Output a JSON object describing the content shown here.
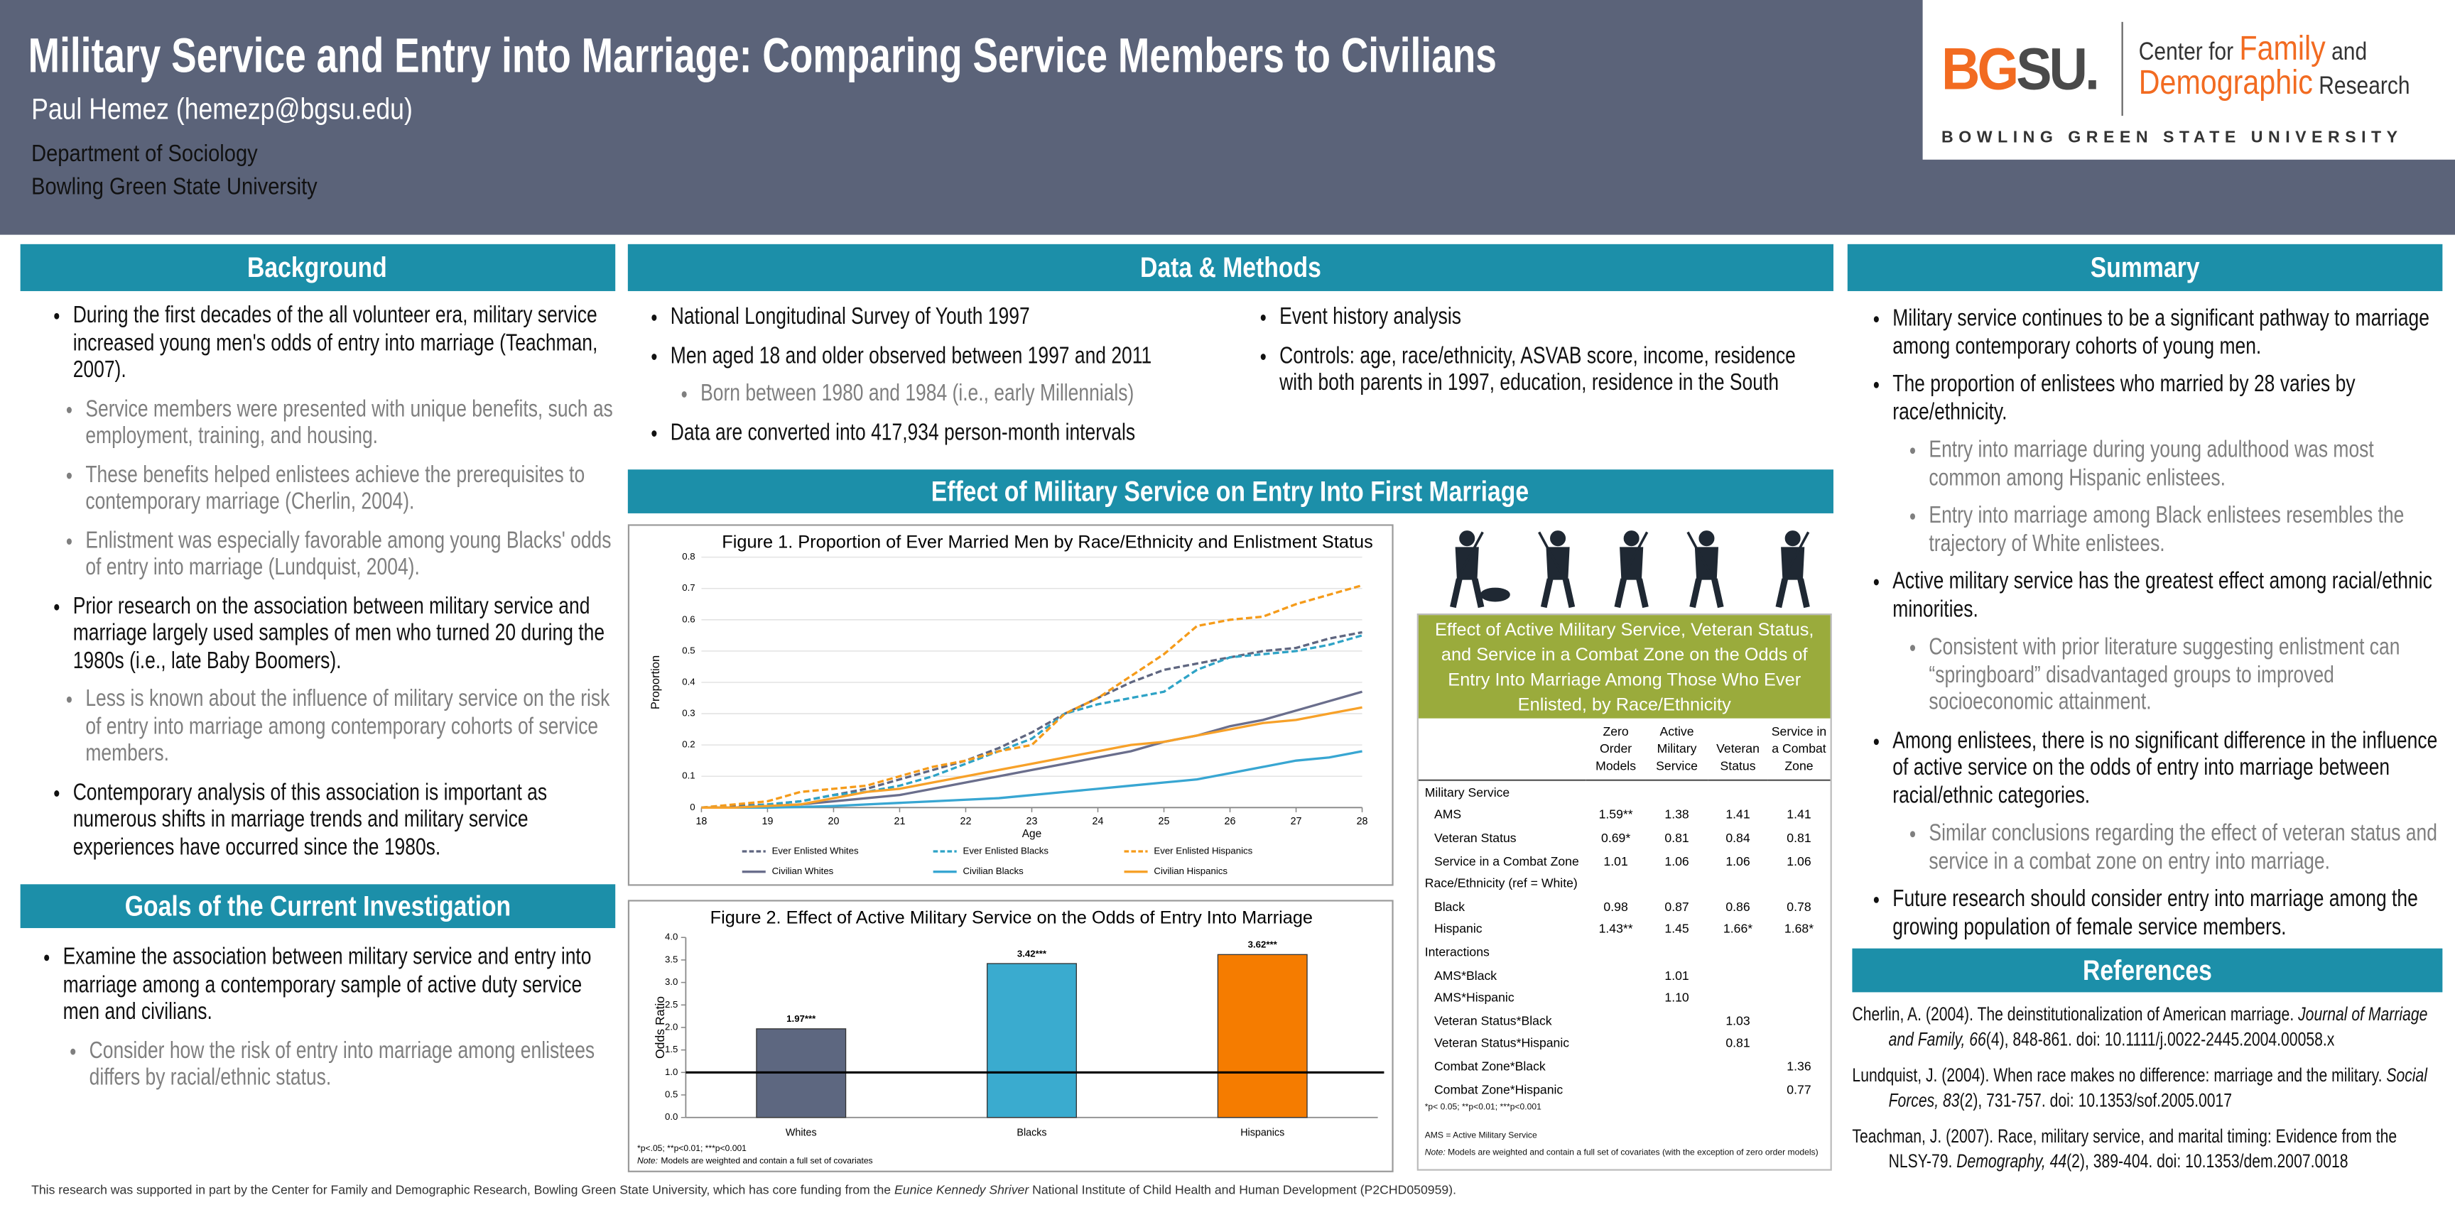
{
  "header": {
    "title": "Military Service and Entry into Marriage: Comparing Service Members to Civilians",
    "author": "Paul Hemez (hemezp@bgsu.edu)",
    "department": "Department of Sociology",
    "university": "Bowling Green State University"
  },
  "logo": {
    "bg": "BG",
    "su": "SU.",
    "center_for": "Center for",
    "family": "Family",
    "and": "and",
    "demographic": "Demographic",
    "research": "Research",
    "university": "BOWLING GREEN STATE UNIVERSITY"
  },
  "background": {
    "heading": "Background",
    "items": [
      {
        "level": 1,
        "text": "During the first decades of the all volunteer era, military service increased young men's odds of entry into marriage (Teachman, 2007)."
      },
      {
        "level": 2,
        "text": "Service members were presented with unique benefits, such as employment, training, and housing."
      },
      {
        "level": 2,
        "text": "These benefits helped enlistees achieve the prerequisites to contemporary marriage (Cherlin, 2004)."
      },
      {
        "level": 2,
        "text": "Enlistment was especially favorable among young Blacks' odds of entry into marriage (Lundquist, 2004)."
      },
      {
        "level": 1,
        "text": "Prior research on the association between military service and marriage largely used samples of men who turned 20 during the 1980s (i.e., late Baby Boomers)."
      },
      {
        "level": 2,
        "text": "Less is known about the influence of military service on the risk of entry into marriage among contemporary cohorts of service members."
      },
      {
        "level": 1,
        "text": "Contemporary analysis of this association is important as numerous shifts in marriage trends and military service experiences have occurred since the 1980s."
      }
    ]
  },
  "goals": {
    "heading": "Goals of the Current Investigation",
    "items": [
      {
        "level": 1,
        "text": "Examine the association between military service and entry into marriage among a contemporary sample of active duty service men and civilians."
      },
      {
        "level": 2,
        "text": "Consider how the risk of entry into marriage among enlistees differs by racial/ethnic status."
      }
    ]
  },
  "methods": {
    "heading": "Data & Methods",
    "left": [
      {
        "level": 1,
        "text": "National Longitudinal Survey of Youth 1997"
      },
      {
        "level": 1,
        "text": "Men aged 18 and older observed between 1997 and 2011"
      },
      {
        "level": 2,
        "text": "Born between 1980 and 1984 (i.e., early Millennials)"
      },
      {
        "level": 1,
        "text": "Data are converted into 417,934 person-month intervals"
      }
    ],
    "right": [
      {
        "level": 1,
        "text": "Event history analysis"
      },
      {
        "level": 1,
        "text": "Controls: age, race/ethnicity, ASVAB score, income, residence with both parents in 1997, education, residence in the South"
      }
    ]
  },
  "effect_heading": "Effect of Military Service on Entry Into First Marriage",
  "chart_data": [
    {
      "type": "line",
      "title": "Figure 1. Proportion of Ever Married Men by Race/Ethnicity and Enlistment Status",
      "x_label": "Age",
      "y_label": "Proportion",
      "x": [
        18,
        18.5,
        19,
        19.5,
        20,
        20.5,
        21,
        21.5,
        22,
        22.5,
        23,
        23.5,
        24,
        24.5,
        25,
        25.5,
        26,
        26.5,
        27,
        27.5,
        28
      ],
      "xlim": [
        18,
        28
      ],
      "xticks": [
        18,
        19,
        20,
        21,
        22,
        23,
        24,
        25,
        26,
        27,
        28
      ],
      "ylim": [
        0,
        0.8
      ],
      "yticks": [
        0,
        0.1,
        0.2,
        0.3,
        0.4,
        0.5,
        0.6,
        0.7,
        0.8
      ],
      "grid": true,
      "legend": "bottom",
      "series": [
        {
          "name": "Ever Enlisted Whites",
          "color": "#5f6680",
          "dash": true,
          "values": [
            0,
            0.005,
            0.01,
            0.02,
            0.04,
            0.06,
            0.09,
            0.12,
            0.15,
            0.19,
            0.24,
            0.3,
            0.35,
            0.4,
            0.44,
            0.46,
            0.48,
            0.5,
            0.51,
            0.54,
            0.56
          ]
        },
        {
          "name": "Ever Enlisted Blacks",
          "color": "#2ea3c6",
          "dash": true,
          "values": [
            0,
            0,
            0.01,
            0.02,
            0.04,
            0.05,
            0.07,
            0.1,
            0.14,
            0.18,
            0.22,
            0.3,
            0.33,
            0.35,
            0.37,
            0.44,
            0.48,
            0.49,
            0.5,
            0.52,
            0.55
          ]
        },
        {
          "name": "Ever Enlisted Hispanics",
          "color": "#f59b1a",
          "dash": true,
          "values": [
            0,
            0.01,
            0.02,
            0.05,
            0.06,
            0.07,
            0.1,
            0.13,
            0.15,
            0.18,
            0.2,
            0.3,
            0.35,
            0.42,
            0.49,
            0.58,
            0.6,
            0.61,
            0.65,
            0.68,
            0.71
          ]
        },
        {
          "name": "Civilian Whites",
          "color": "#6a6e8c",
          "dash": false,
          "values": [
            0,
            0,
            0.005,
            0.01,
            0.02,
            0.03,
            0.04,
            0.06,
            0.08,
            0.1,
            0.12,
            0.14,
            0.16,
            0.18,
            0.21,
            0.23,
            0.26,
            0.28,
            0.31,
            0.34,
            0.37
          ]
        },
        {
          "name": "Civilian Blacks",
          "color": "#38a6d2",
          "dash": false,
          "values": [
            0,
            0,
            0,
            0.002,
            0.005,
            0.01,
            0.015,
            0.02,
            0.025,
            0.03,
            0.04,
            0.05,
            0.06,
            0.07,
            0.08,
            0.09,
            0.11,
            0.13,
            0.15,
            0.16,
            0.18
          ]
        },
        {
          "name": "Civilian Hispanics",
          "color": "#f7a129",
          "dash": false,
          "values": [
            0,
            0,
            0.005,
            0.01,
            0.03,
            0.05,
            0.06,
            0.08,
            0.1,
            0.12,
            0.14,
            0.16,
            0.18,
            0.2,
            0.21,
            0.23,
            0.25,
            0.27,
            0.28,
            0.3,
            0.32
          ]
        }
      ]
    },
    {
      "type": "bar",
      "title": "Figure 2. Effect of Active Military Service on the Odds of Entry Into Marriage",
      "y_label": "Odds Ratio",
      "categories": [
        "Whites",
        "Blacks",
        "Hispanics"
      ],
      "values": [
        1.97,
        3.42,
        3.62
      ],
      "value_labels": [
        "1.97***",
        "3.42***",
        "3.62***"
      ],
      "colors": [
        "#5d6780",
        "#3aabcf",
        "#f57c00"
      ],
      "ylim": [
        0,
        4
      ],
      "yticks": [
        {
          "value": 0,
          "label": "0.0"
        },
        {
          "value": 0.5,
          "label": "0.5"
        },
        {
          "value": 1,
          "label": "1.0"
        },
        {
          "value": 1.5,
          "label": "1.5"
        },
        {
          "value": 2,
          "label": "2.0"
        },
        {
          "value": 2.5,
          "label": "2.5"
        },
        {
          "value": 3,
          "label": "3.0"
        },
        {
          "value": 3.5,
          "label": "3.5"
        },
        {
          "value": 4,
          "label": "4.0"
        }
      ],
      "reference_line": 1,
      "notes": "*p<.05; **p<0.01; ***p<0.001",
      "note_label": "Note:",
      "note_text": "Models are weighted and contain a full set of covariates"
    }
  ],
  "table": {
    "title": "Effect of Active Military Service, Veteran Status, and Service in a Combat Zone on the Odds of Entry Into Marriage Among Those Who Ever Enlisted, by Race/Ethnicity",
    "columns": [
      "Zero Order Models",
      "Active Military Service",
      "Veteran Status",
      "Service in a Combat Zone"
    ],
    "rows": [
      {
        "label": "Military Service"
      },
      {
        "label": "AMS",
        "cells": [
          "1.59**",
          "1.38",
          "1.41",
          "1.41"
        ]
      },
      {
        "label": "Veteran Status",
        "cells": [
          "0.69*",
          "0.81",
          "0.84",
          "0.81"
        ]
      },
      {
        "label": "Service in a Combat Zone",
        "cells": [
          "1.01",
          "1.06",
          "1.06",
          "1.06"
        ]
      },
      {
        "label": "Race/Ethnicity (ref = White)"
      },
      {
        "label": "Black",
        "cells": [
          "0.98",
          "0.87",
          "0.86",
          "0.78"
        ]
      },
      {
        "label": "Hispanic",
        "cells": [
          "1.43**",
          "1.45",
          "1.66*",
          "1.68*"
        ]
      },
      {
        "label": "Interactions"
      },
      {
        "label": "AMS*Black",
        "cells": [
          null,
          "1.01",
          null,
          null
        ]
      },
      {
        "label": "AMS*Hispanic",
        "cells": [
          null,
          "1.10",
          null,
          null
        ]
      },
      {
        "label": "Veteran Status*Black",
        "cells": [
          null,
          null,
          "1.03",
          null
        ]
      },
      {
        "label": "Veteran Status*Hispanic",
        "cells": [
          null,
          null,
          "0.81",
          null
        ]
      },
      {
        "label": "Combat Zone*Black",
        "cells": [
          null,
          null,
          null,
          "1.36"
        ]
      },
      {
        "label": "Combat Zone*Hispanic",
        "cells": [
          null,
          null,
          null,
          "0.77"
        ]
      }
    ],
    "notes": {
      "significance": "*p< 0.05; **p<0.01; ***p<0.001",
      "abbreviation": "AMS = Active Military Service",
      "note_label": "Note:",
      "note_text": "Models are weighted and contain a full set of covariates (with the exception of zero order models)"
    }
  },
  "summary": {
    "heading": "Summary",
    "items": [
      {
        "level": 1,
        "text": "Military service continues to be a significant pathway to marriage among contemporary cohorts of young men."
      },
      {
        "level": 1,
        "text": "The proportion of enlistees who married by 28 varies by race/ethnicity."
      },
      {
        "level": 2,
        "text": "Entry into marriage during young adulthood was most common among Hispanic enlistees."
      },
      {
        "level": 2,
        "text": "Entry into marriage among Black enlistees resembles the trajectory of White enlistees."
      },
      {
        "level": 1,
        "text": "Active military service has the greatest effect among racial/ethnic minorities."
      },
      {
        "level": 2,
        "text": "Consistent with prior literature suggesting enlistment can “springboard” disadvantaged groups to improved socioeconomic attainment."
      },
      {
        "level": 1,
        "text": "Among enlistees, there is no significant difference in the influence of active service on the odds of entry into marriage between racial/ethnic categories."
      },
      {
        "level": 2,
        "text": "Similar conclusions regarding the effect of veteran status and service in a combat zone on entry into marriage."
      },
      {
        "level": 1,
        "text": "Future research should consider entry into marriage among the growing population of female service members."
      }
    ]
  },
  "references": {
    "heading": "References",
    "items": [
      {
        "text": "Cherlin, A. (2004). The deinstitutionalization of American marriage. ",
        "journal": "Journal of Marriage and Family, 66",
        "rest": "(4), 848-861. doi: 10.1111/j.0022-2445.2004.00058.x"
      },
      {
        "text": "Lundquist, J. (2004). When race makes no difference: marriage and the military. ",
        "journal": "Social Forces, 83",
        "rest": "(2), 731-757. doi: 10.1353/sof.2005.0017"
      },
      {
        "text": "Teachman, J. (2007). Race, military service, and marital timing: Evidence from the NLSY-79. ",
        "journal": "Demography, 44",
        "rest": "(2), 389-404. doi: 10.1353/dem.2007.0018"
      }
    ]
  },
  "footer": {
    "text": "This research was supported in part by the Center for Family and Demographic Research, Bowling Green State University, which has core funding from the ",
    "emphasis": "Eunice Kennedy Shriver",
    "rest": " National Institute of Child Health and Human Development (P2CHD050959)."
  }
}
